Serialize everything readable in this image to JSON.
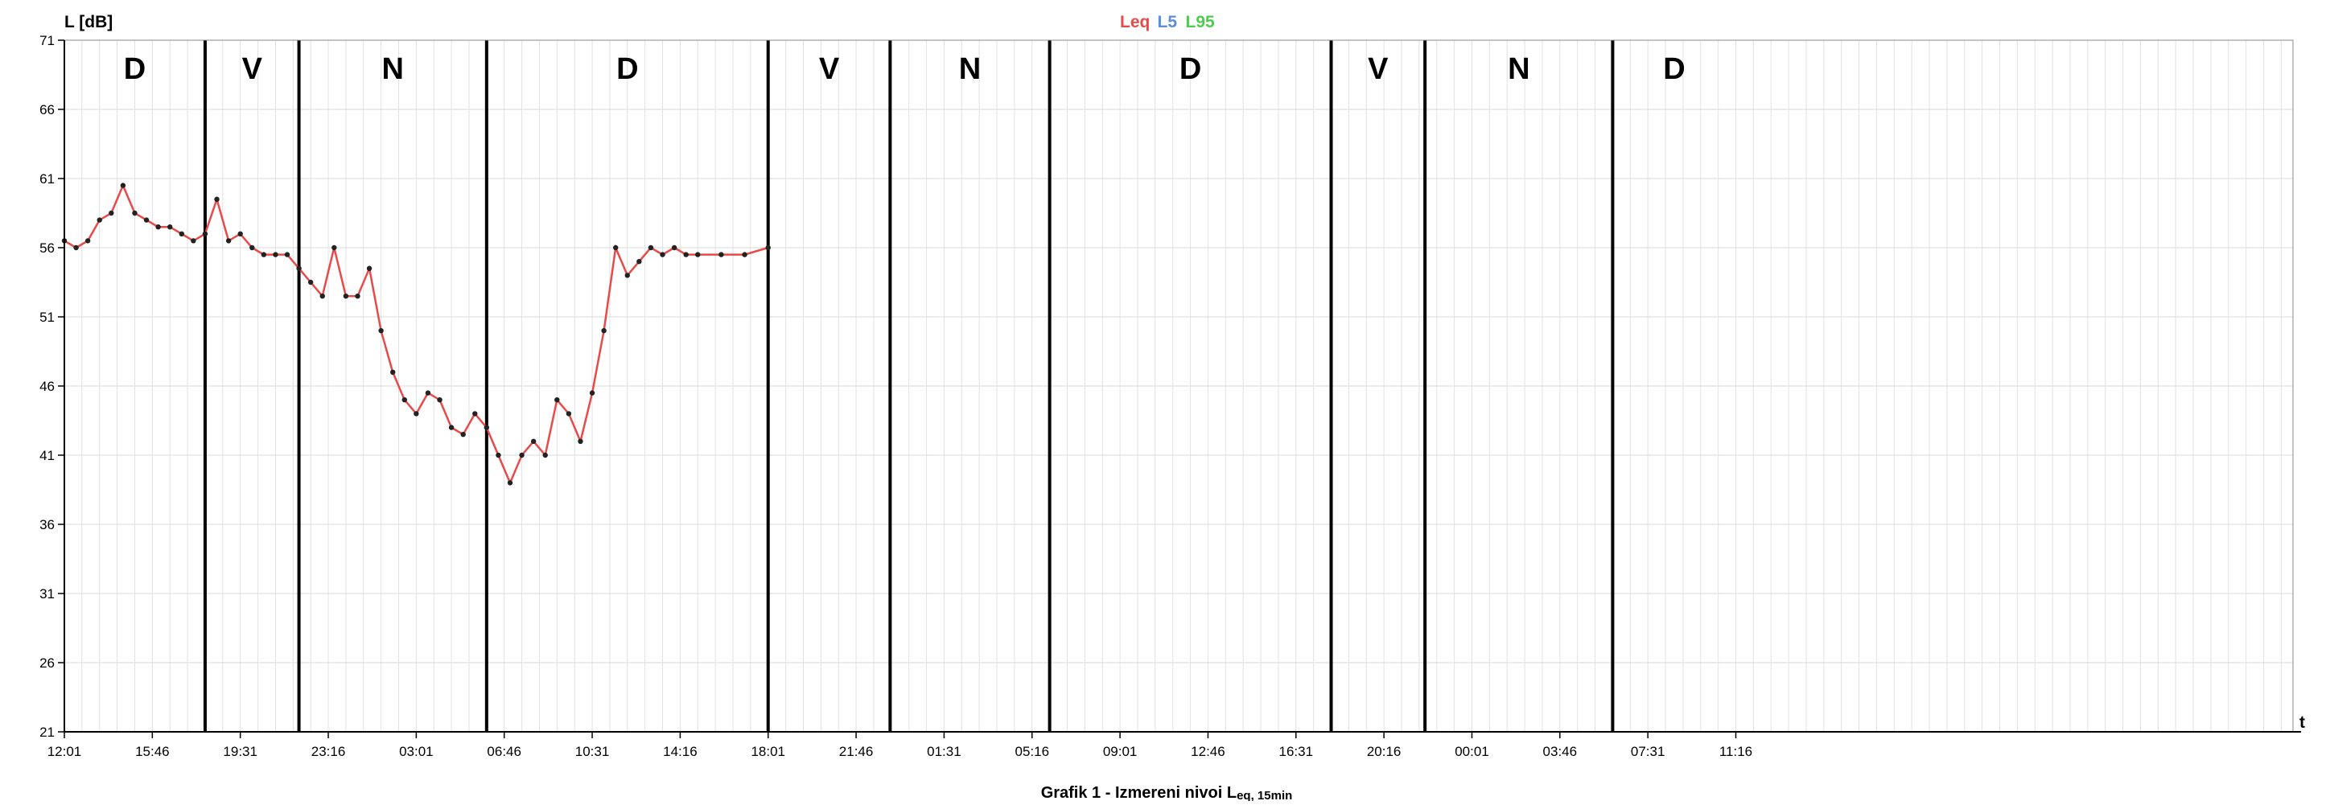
{
  "chart_data": {
    "type": "line",
    "title": "Grafik 1 - Izmereni nivoi L",
    "title_sub": "eq, 15min",
    "ylabel": "L [dB]",
    "xlabel": "t",
    "ylim": [
      21,
      71
    ],
    "yticks": [
      21,
      26,
      31,
      36,
      41,
      46,
      51,
      56,
      61,
      66,
      71
    ],
    "xlim": [
      0,
      95
    ],
    "xticks": [
      {
        "x": 0,
        "label": "12:01"
      },
      {
        "x": 3.75,
        "label": "15:46"
      },
      {
        "x": 7.5,
        "label": "19:31"
      },
      {
        "x": 11.25,
        "label": "23:16"
      },
      {
        "x": 15,
        "label": "03:01"
      },
      {
        "x": 18.75,
        "label": "06:46"
      },
      {
        "x": 22.5,
        "label": "10:31"
      },
      {
        "x": 26.25,
        "label": "14:16"
      },
      {
        "x": 30,
        "label": "18:01"
      },
      {
        "x": 33.75,
        "label": "21:46"
      },
      {
        "x": 37.5,
        "label": "01:31"
      },
      {
        "x": 41.25,
        "label": "05:16"
      },
      {
        "x": 45,
        "label": "09:01"
      },
      {
        "x": 48.75,
        "label": "12:46"
      },
      {
        "x": 52.5,
        "label": "16:31"
      },
      {
        "x": 56.25,
        "label": "20:16"
      },
      {
        "x": 60,
        "label": "00:01"
      },
      {
        "x": 63.75,
        "label": "03:46"
      },
      {
        "x": 67.5,
        "label": "07:31"
      },
      {
        "x": 71.25,
        "label": "11:16"
      }
    ],
    "periods": [
      {
        "label": "D",
        "start": 0,
        "end": 6
      },
      {
        "label": "V",
        "start": 6,
        "end": 10
      },
      {
        "label": "N",
        "start": 10,
        "end": 18
      },
      {
        "label": "D",
        "start": 18,
        "end": 30
      },
      {
        "label": "V",
        "start": 30,
        "end": 35.2
      },
      {
        "label": "N",
        "start": 35.2,
        "end": 42
      },
      {
        "label": "D",
        "start": 42,
        "end": 54
      },
      {
        "label": "V",
        "start": 54,
        "end": 58
      },
      {
        "label": "N",
        "start": 58,
        "end": 66
      },
      {
        "label": "D",
        "start": 66,
        "end": 71.25
      }
    ],
    "grid": true,
    "legend_position": "top-center",
    "series": [
      {
        "name": "Leq",
        "color": "#e84a4a",
        "points": [
          [
            0,
            56.5
          ],
          [
            0.5,
            56
          ],
          [
            1,
            56.5
          ],
          [
            1.5,
            58
          ],
          [
            2,
            58.5
          ],
          [
            2.5,
            60.5
          ],
          [
            3,
            58.5
          ],
          [
            3.5,
            58
          ],
          [
            4,
            57.5
          ],
          [
            4.5,
            57.5
          ],
          [
            5,
            57
          ],
          [
            5.5,
            56.5
          ],
          [
            6,
            57
          ],
          [
            6.5,
            59.5
          ],
          [
            7,
            56.5
          ],
          [
            7.5,
            57
          ],
          [
            8,
            56
          ],
          [
            8.5,
            55.5
          ],
          [
            9,
            55.5
          ],
          [
            9.5,
            55.5
          ],
          [
            10,
            54.5
          ],
          [
            10.5,
            53.5
          ],
          [
            11,
            52.5
          ],
          [
            11.5,
            56
          ],
          [
            12,
            52.5
          ],
          [
            12.5,
            52.5
          ],
          [
            13,
            54.5
          ],
          [
            13.5,
            50
          ],
          [
            14,
            47
          ],
          [
            14.5,
            45
          ],
          [
            15,
            44
          ],
          [
            15.5,
            45.5
          ],
          [
            16,
            45
          ],
          [
            16.5,
            43
          ],
          [
            17,
            42.5
          ],
          [
            17.5,
            44
          ],
          [
            18,
            43
          ],
          [
            18.5,
            41
          ],
          [
            19,
            39
          ],
          [
            19.5,
            41
          ],
          [
            20,
            42
          ],
          [
            20.5,
            41
          ],
          [
            21,
            45
          ],
          [
            21.5,
            44
          ],
          [
            22,
            42
          ],
          [
            22.5,
            45.5
          ],
          [
            23,
            50
          ],
          [
            23.5,
            56
          ],
          [
            24,
            54
          ],
          [
            24.5,
            55
          ],
          [
            25,
            56
          ],
          [
            25.5,
            55.5
          ],
          [
            26,
            56
          ],
          [
            26.5,
            55.5
          ],
          [
            27,
            55.5
          ],
          [
            28,
            55.5
          ],
          [
            29,
            55.5
          ],
          [
            30,
            56
          ]
        ],
        "x_scale": 0.5
      },
      {
        "name": "L5",
        "color": "#5b8fd6",
        "points": [],
        "x_scale": 0.5
      },
      {
        "name": "L95",
        "color": "#4fcc4f",
        "points": [],
        "x_scale": 0.5
      }
    ]
  }
}
